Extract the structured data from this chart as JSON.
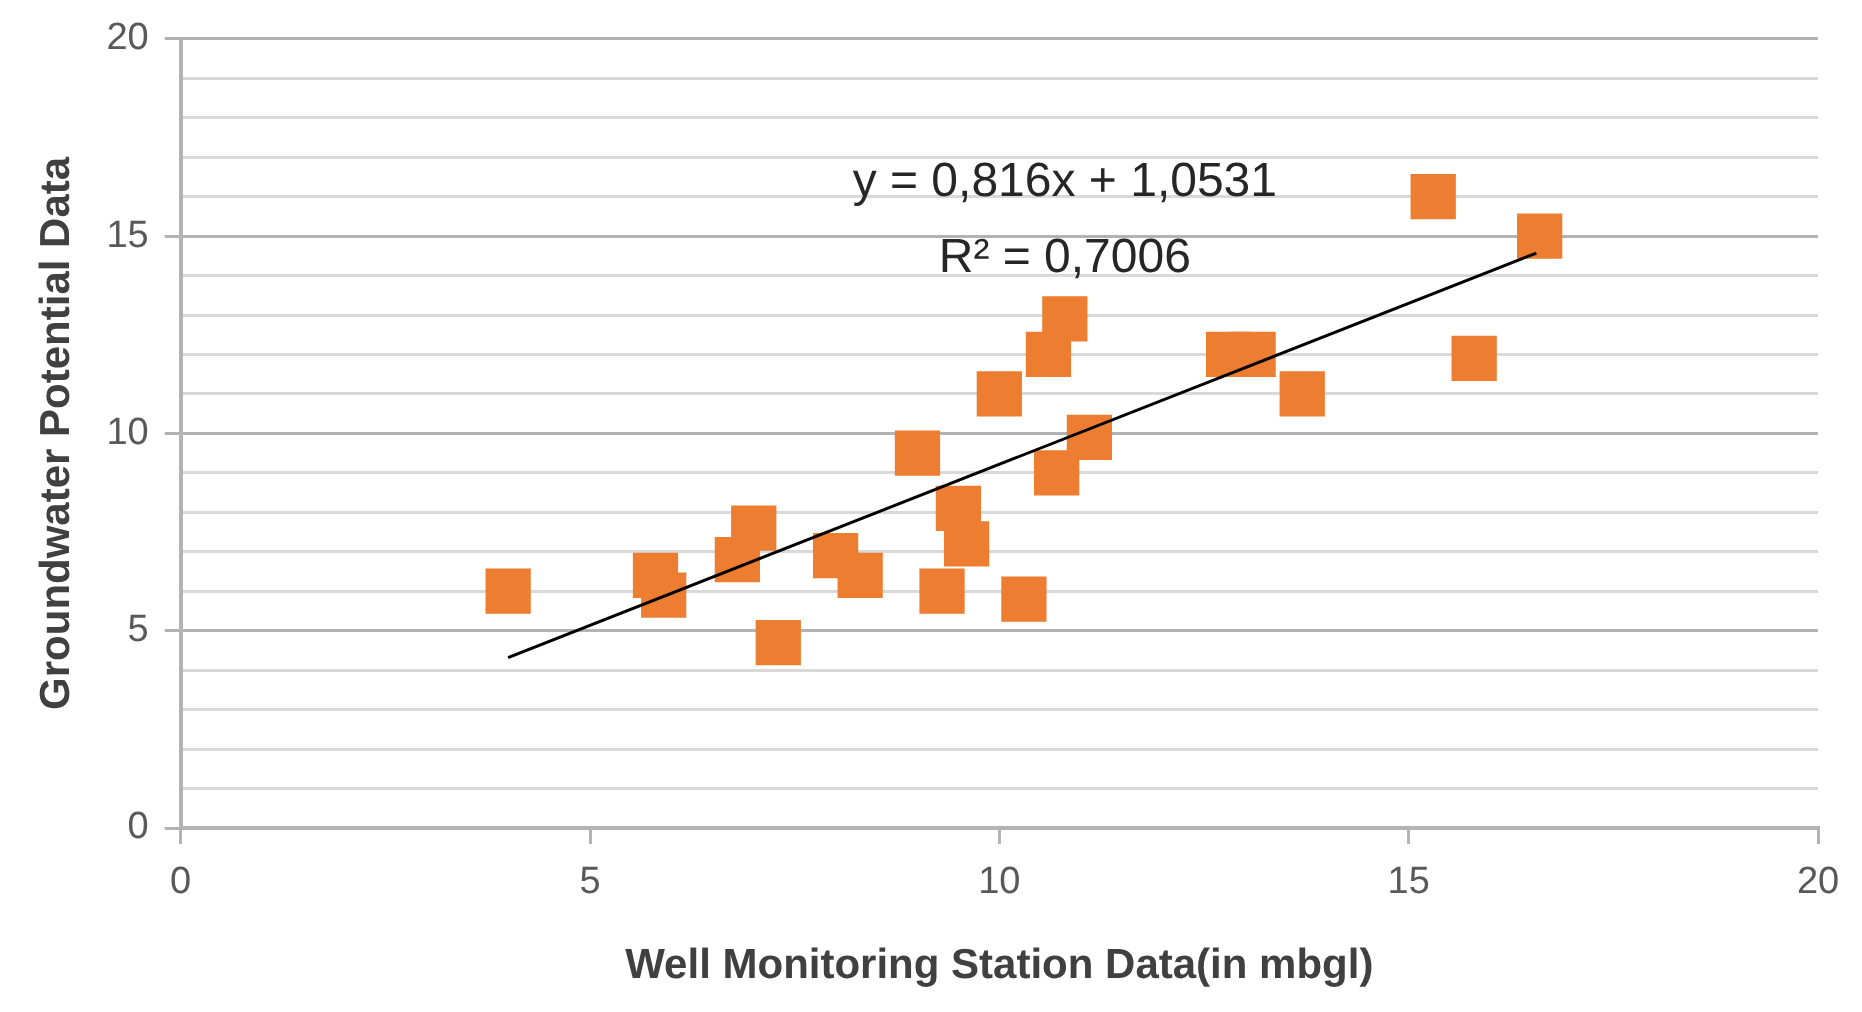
{
  "chart_data": {
    "type": "scatter",
    "xlabel": "Well Monitoring Station Data(in mbgl)",
    "ylabel": "Groundwater Potential Data",
    "xlim": [
      0,
      20
    ],
    "xticks": [
      0,
      5,
      10,
      15,
      20
    ],
    "ylim": [
      0,
      20
    ],
    "yticks": [
      0,
      {
        "value": 1,
        "label": null
      },
      {
        "value": 2,
        "label": null
      },
      {
        "value": 3,
        "label": null
      },
      {
        "value": 4,
        "label": null
      },
      5,
      {
        "value": 6,
        "label": null
      },
      {
        "value": 7,
        "label": null
      },
      {
        "value": 8,
        "label": null
      },
      {
        "value": 9,
        "label": null
      },
      10,
      {
        "value": 11,
        "label": null
      },
      {
        "value": 12,
        "label": null
      },
      {
        "value": 13,
        "label": null
      },
      {
        "value": 14,
        "label": null
      },
      15,
      {
        "value": 16,
        "label": null
      },
      {
        "value": 17,
        "label": null
      },
      {
        "value": 18,
        "label": null
      },
      {
        "value": 19,
        "label": null
      },
      20
    ],
    "grid": "y",
    "annotations": [
      "y = 0,816x + 1,0531",
      "R² = 0,7006"
    ],
    "series": [
      {
        "color": "#ed7d31",
        "marker": "square",
        "x": [
          4.0,
          5.8,
          5.9,
          6.8,
          7.0,
          7.3,
          8.0,
          8.3,
          9.0,
          9.3,
          9.5,
          9.6,
          10.3,
          10.0,
          10.7,
          11.1,
          10.6,
          10.8,
          12.8,
          13.1,
          13.7,
          15.3,
          16.6,
          15.8
        ],
        "values": [
          6.0,
          6.4,
          5.9,
          6.8,
          7.6,
          4.7,
          6.9,
          6.4,
          9.5,
          6.0,
          8.1,
          7.2,
          5.8,
          11.0,
          9.0,
          9.9,
          12.0,
          12.9,
          12.0,
          12.0,
          11.0,
          16.0,
          15.0,
          11.9
        ]
      },
      {
        "type": "line",
        "marker": "none",
        "color": "#000000",
        "x": [
          4.0,
          16.56
        ],
        "values": [
          4.32,
          14.57
        ]
      }
    ]
  }
}
